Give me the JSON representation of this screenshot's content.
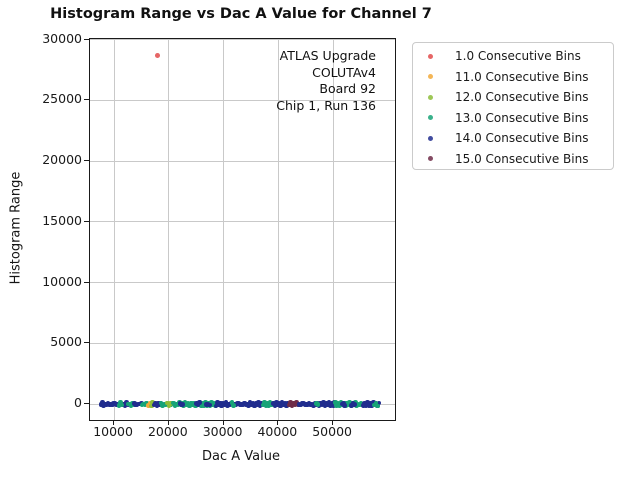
{
  "chart_data": {
    "type": "scatter",
    "title": "Histogram Range vs Dac A Value for Channel 7",
    "xlabel": "Dac A Value",
    "ylabel": "Histogram Range",
    "xlim": [
      5600,
      61300
    ],
    "ylim": [
      -1300,
      30050
    ],
    "x_ticks": [
      10000,
      20000,
      30000,
      40000,
      50000
    ],
    "y_ticks": [
      0,
      5000,
      10000,
      15000,
      20000,
      25000,
      30000
    ],
    "grid": true,
    "legend": {
      "position": "upper-right-outside"
    },
    "series": [
      {
        "id": "1.0",
        "label": "1.0 Consecutive Bins",
        "color": "#e24b4b"
      },
      {
        "id": "11.0",
        "label": "11.0 Consecutive Bins",
        "color": "#f2a93a"
      },
      {
        "id": "12.0",
        "label": "12.0 Consecutive Bins",
        "color": "#8dbd3a"
      },
      {
        "id": "13.0",
        "label": "13.0 Consecutive Bins",
        "color": "#17a377"
      },
      {
        "id": "14.0",
        "label": "14.0 Consecutive Bins",
        "color": "#202d8e"
      },
      {
        "id": "15.0",
        "label": "15.0 Consecutive Bins",
        "color": "#6f2c48"
      }
    ],
    "outlier_points": [
      {
        "series": "1.0",
        "x": 17900,
        "y": 28700
      }
    ],
    "baseline_band": {
      "y": 0,
      "x_min": 7600,
      "x_max": 58600,
      "step": 260,
      "note": "dense overlapping scatter points with histogram range ~0 across the full DAC sweep",
      "segments": [
        {
          "x0": 7600,
          "x1": 12600,
          "series": "14.0"
        },
        {
          "x0": 10900,
          "x1": 11500,
          "series": "13.0"
        },
        {
          "x0": 12600,
          "x1": 13700,
          "series": "13.0"
        },
        {
          "x0": 13700,
          "x1": 15100,
          "series": "14.0"
        },
        {
          "x0": 15100,
          "x1": 17300,
          "series": "13.0"
        },
        {
          "x0": 16300,
          "x1": 16800,
          "series": "11.0"
        },
        {
          "x0": 16800,
          "x1": 17300,
          "series": "12.0"
        },
        {
          "x0": 17300,
          "x1": 18600,
          "series": "14.0"
        },
        {
          "x0": 18600,
          "x1": 20900,
          "series": "13.0"
        },
        {
          "x0": 19800,
          "x1": 20400,
          "series": "12.0"
        },
        {
          "x0": 20900,
          "x1": 24100,
          "series": "13.0"
        },
        {
          "x0": 22000,
          "x1": 22600,
          "series": "14.0"
        },
        {
          "x0": 24100,
          "x1": 28600,
          "series": "13.0"
        },
        {
          "x0": 25100,
          "x1": 25800,
          "series": "14.0"
        },
        {
          "x0": 26900,
          "x1": 27500,
          "series": "14.0"
        },
        {
          "x0": 28600,
          "x1": 37200,
          "series": "14.0"
        },
        {
          "x0": 31500,
          "x1": 32000,
          "series": "13.0"
        },
        {
          "x0": 37200,
          "x1": 39100,
          "series": "13.0"
        },
        {
          "x0": 39100,
          "x1": 42000,
          "series": "14.0"
        },
        {
          "x0": 42000,
          "x1": 43800,
          "series": "15.0"
        },
        {
          "x0": 43800,
          "x1": 50400,
          "series": "14.0"
        },
        {
          "x0": 47000,
          "x1": 47500,
          "series": "13.0"
        },
        {
          "x0": 50400,
          "x1": 55500,
          "series": "13.0"
        },
        {
          "x0": 51600,
          "x1": 52300,
          "series": "14.0"
        },
        {
          "x0": 53400,
          "x1": 54100,
          "series": "14.0"
        },
        {
          "x0": 55500,
          "x1": 58600,
          "series": "14.0"
        },
        {
          "x0": 57600,
          "x1": 58300,
          "series": "13.0"
        }
      ]
    },
    "annotation": {
      "lines": [
        "ATLAS Upgrade",
        "COLUTAv4",
        "Board 92",
        "Chip 1, Run 136"
      ]
    }
  }
}
